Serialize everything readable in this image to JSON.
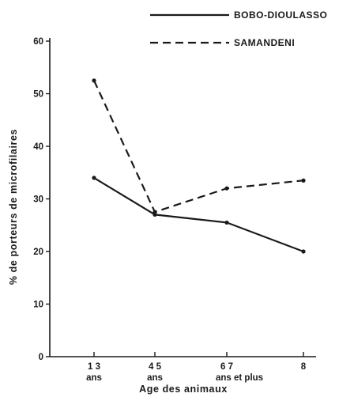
{
  "chart_data": {
    "type": "line",
    "title": "",
    "xlabel": "Age des animaux",
    "ylabel": "% de porteurs de microfilaires",
    "x_tick_labels": [
      {
        "number": "1 3",
        "sub": "ans"
      },
      {
        "number": "4 5",
        "sub": "ans"
      },
      {
        "number": "6 7",
        "sub": "ans et plus"
      },
      {
        "number": "8",
        "sub": ""
      }
    ],
    "categories": [
      "1 3 ans",
      "4 5 ans",
      "6 7 ans et plus",
      "8"
    ],
    "y_ticks": [
      0,
      10,
      20,
      30,
      40,
      50,
      60
    ],
    "ylim": [
      0,
      60
    ],
    "grid": false,
    "legend_position": "top-right",
    "series": [
      {
        "name": "BOBO-DIOULASSO",
        "style": "solid",
        "values": [
          34,
          27,
          25.5,
          20
        ]
      },
      {
        "name": "SAMANDENI",
        "style": "dashed",
        "values": [
          52.5,
          27.5,
          32,
          33.5
        ]
      }
    ]
  }
}
